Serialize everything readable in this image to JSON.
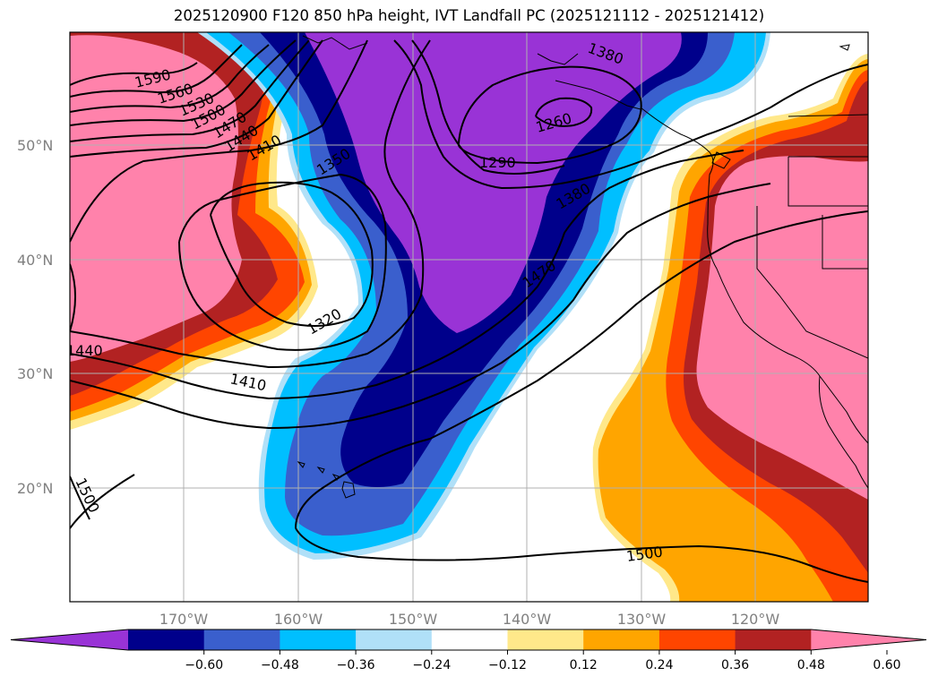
{
  "title": "2025120900 F120 850 hPa height, IVT Landfall PC (2025121112 - 2025121412)",
  "map": {
    "lat_labels": [
      "50°N",
      "40°N",
      "30°N",
      "20°N"
    ],
    "lon_labels": [
      "170°W",
      "160°W",
      "150°W",
      "140°W",
      "130°W",
      "120°W"
    ],
    "contour_labels": [
      "1590",
      "1560",
      "1530",
      "1500",
      "1470",
      "1440",
      "1410",
      "1350",
      "1260",
      "1290",
      "1380",
      "1470",
      "1320",
      "1410",
      "1500",
      "1500",
      "1440",
      "1380"
    ],
    "grid": true
  },
  "colorbar": {
    "tick_labels": [
      "−0.60",
      "−0.48",
      "−0.36",
      "−0.24",
      "−0.12",
      "0.12",
      "0.24",
      "0.36",
      "0.48",
      "0.60"
    ],
    "colors": [
      "#9933d6",
      "#00008b",
      "#3a5fcd",
      "#00bfff",
      "#b0e0f8",
      "#ffffff",
      "#ffe88a",
      "#ffa500",
      "#ff4500",
      "#b22222",
      "#ff82ab"
    ]
  }
}
